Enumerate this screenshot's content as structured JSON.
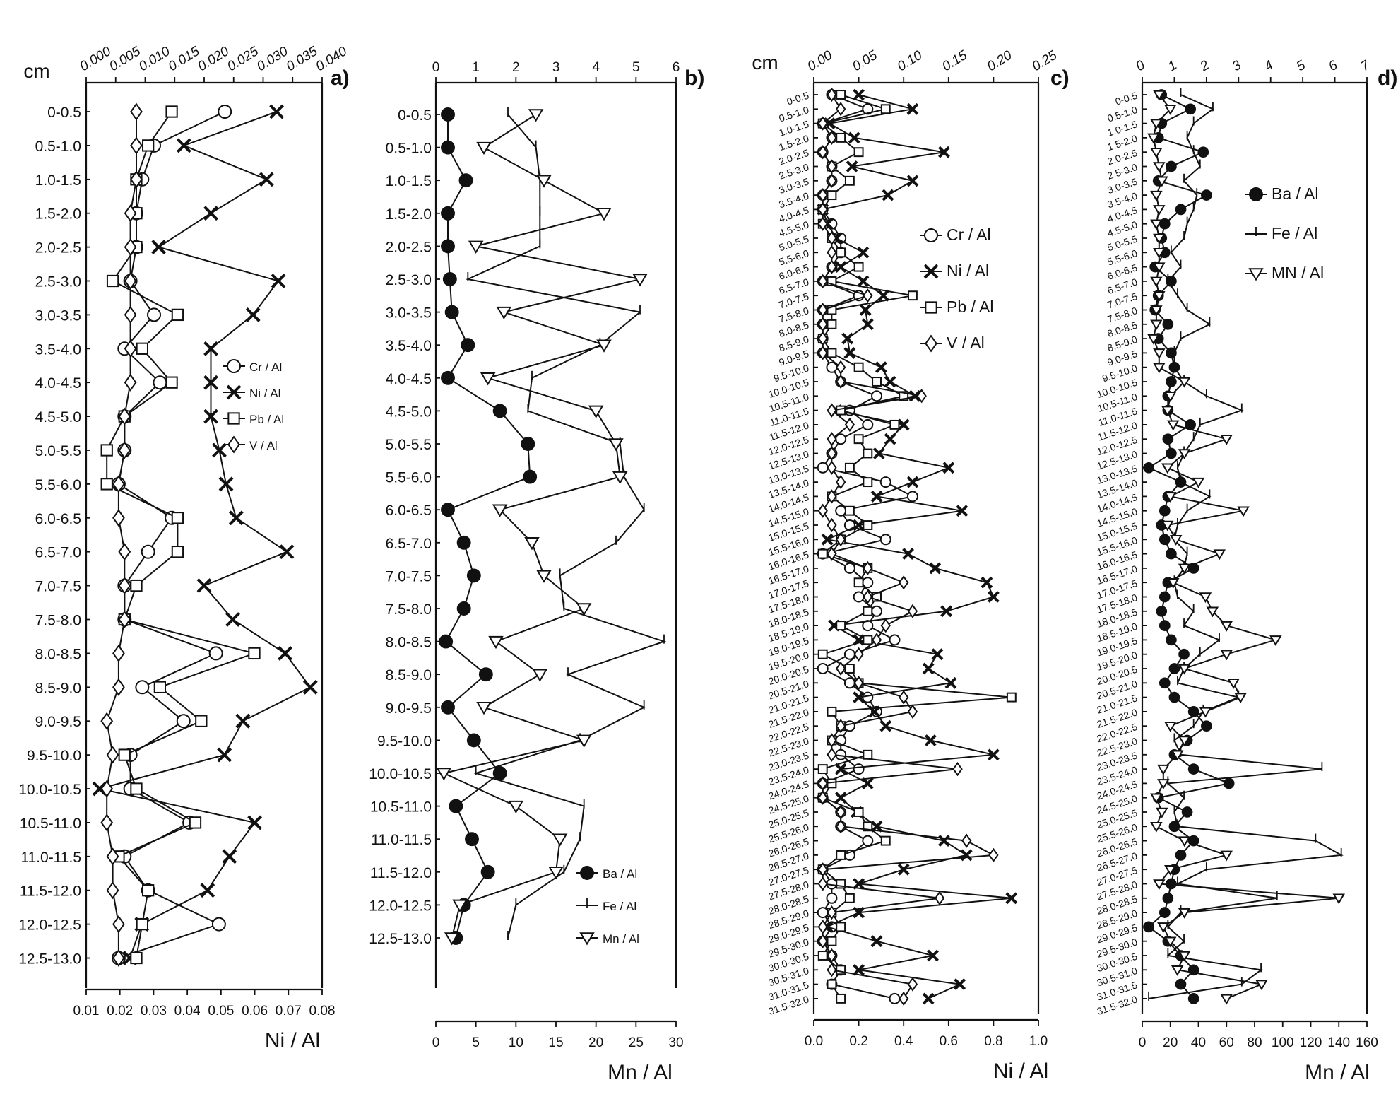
{
  "figure": {
    "depth_unit": "cm",
    "panels": [
      "a)",
      "b)",
      "c)",
      "d)"
    ]
  },
  "chart_data": [
    {
      "panel": "a)",
      "type": "line",
      "depth_label": "cm",
      "categories": [
        "0-0.5",
        "0.5-1.0",
        "1.0-1.5",
        "1.5-2.0",
        "2.0-2.5",
        "2.5-3.0",
        "3.0-3.5",
        "3.5-4.0",
        "4.0-4.5",
        "4.5-5.0",
        "5.0-5.5",
        "5.5-6.0",
        "6.0-6.5",
        "6.5-7.0",
        "7.0-7.5",
        "7.5-8.0",
        "8.0-8.5",
        "8.5-9.0",
        "9.0-9.5",
        "9.5-10.0",
        "10.0-10.5",
        "10.5-11.0",
        "11.0-11.5",
        "11.5-12.0",
        "12.0-12.5",
        "12.5-13.0"
      ],
      "top_axis": {
        "min": 0.0,
        "max": 0.04,
        "ticks": [
          "0.000",
          "0.005",
          "0.010",
          "0.015",
          "0.020",
          "0.025",
          "0.030",
          "0.035",
          "0.040"
        ]
      },
      "bottom_axis": {
        "label": "Ni / Al",
        "min": 0.01,
        "max": 0.08,
        "ticks": [
          "0.01",
          "0.02",
          "0.03",
          "0.04",
          "0.05",
          "0.06",
          "0.07",
          "0.08"
        ]
      },
      "series": [
        {
          "name": "Cr / Al",
          "marker": "circle",
          "axis": "top",
          "values": [
            0.0235,
            0.0115,
            0.0095,
            0.0085,
            0.0085,
            0.0075,
            0.0115,
            0.0065,
            0.0125,
            0.0065,
            0.0065,
            0.0055,
            0.0145,
            0.0105,
            0.0065,
            0.0065,
            0.022,
            0.0095,
            0.0165,
            0.0075,
            0.0075,
            0.0175,
            0.0065,
            0.0105,
            0.0225,
            0.0055
          ]
        },
        {
          "name": "Ni / Al",
          "marker": "x",
          "axis": "bottom",
          "values": [
            0.0665,
            0.039,
            0.0635,
            0.047,
            0.0315,
            0.067,
            0.0595,
            0.047,
            0.047,
            0.047,
            0.0495,
            0.0515,
            0.0545,
            0.0695,
            0.045,
            0.0535,
            0.069,
            0.0765,
            0.0565,
            0.051,
            0.014,
            0.06,
            0.0525,
            0.046,
            0.0265,
            0.023
          ]
        },
        {
          "name": "Pb / Al",
          "marker": "square",
          "axis": "top",
          "values": [
            0.0145,
            0.0105,
            0.0085,
            0.0085,
            0.0085,
            0.0045,
            0.0155,
            0.0095,
            0.0145,
            0.0065,
            0.0035,
            0.0035,
            0.0155,
            0.0155,
            0.0085,
            0.0065,
            0.0285,
            0.0125,
            0.0195,
            0.0065,
            0.0085,
            0.0185,
            0.0055,
            0.0105,
            0.0095,
            0.0085
          ]
        },
        {
          "name": "V / Al",
          "marker": "diamond",
          "axis": "top",
          "values": [
            0.0085,
            0.0085,
            0.0085,
            0.0075,
            0.0075,
            0.0075,
            0.0075,
            0.0075,
            0.0075,
            0.0065,
            0.0065,
            0.0055,
            0.0055,
            0.0065,
            0.0065,
            0.0065,
            0.0055,
            0.0055,
            0.0035,
            0.0045,
            0.0035,
            0.0035,
            0.0045,
            0.0045,
            0.0055,
            0.0055
          ]
        }
      ],
      "legend_position": "right"
    },
    {
      "panel": "b)",
      "type": "line",
      "categories": [
        "0-0.5",
        "0.5-1.0",
        "1.0-1.5",
        "1.5-2.0",
        "2.0-2.5",
        "2.5-3.0",
        "3.0-3.5",
        "3.5-4.0",
        "4.0-4.5",
        "4.5-5.0",
        "5.0-5.5",
        "5.5-6.0",
        "6.0-6.5",
        "6.5-7.0",
        "7.0-7.5",
        "7.5-8.0",
        "8.0-8.5",
        "8.5-9.0",
        "9.0-9.5",
        "9.5-10.0",
        "10.0-10.5",
        "10.5-11.0",
        "11.0-11.5",
        "11.5-12.0",
        "12.0-12.5",
        "12.5-13.0"
      ],
      "top_axis": {
        "min": 0,
        "max": 6,
        "ticks": [
          "0",
          "1",
          "2",
          "3",
          "4",
          "5",
          "6"
        ]
      },
      "bottom_axis": {
        "label": "Mn / Al",
        "min": 0,
        "max": 30,
        "ticks": [
          "0",
          "5",
          "10",
          "15",
          "20",
          "25",
          "30"
        ]
      },
      "series": [
        {
          "name": "Ba / Al",
          "marker": "filled-circle",
          "axis": "top",
          "values": [
            0.3,
            0.3,
            0.75,
            0.3,
            0.3,
            0.35,
            0.4,
            0.8,
            0.3,
            1.6,
            2.3,
            2.35,
            0.3,
            0.7,
            0.95,
            0.7,
            0.25,
            1.25,
            0.3,
            0.95,
            1.6,
            0.5,
            0.9,
            1.3,
            0.7,
            0.5
          ]
        },
        {
          "name": "Fe / Al",
          "marker": "tick",
          "axis": "top",
          "values": [
            1.8,
            2.5,
            2.6,
            2.6,
            2.6,
            0.8,
            5.1,
            4.1,
            2.4,
            2.3,
            4.6,
            4.7,
            5.2,
            4.5,
            3.1,
            3.2,
            5.7,
            3.3,
            5.2,
            3.6,
            1.0,
            3.7,
            3.6,
            3.2,
            2.0,
            1.8
          ]
        },
        {
          "name": "Mn / Al",
          "marker": "triangle-down",
          "axis": "bottom",
          "values": [
            12.5,
            6.0,
            13.5,
            21.0,
            5.0,
            25.5,
            8.5,
            21.0,
            6.5,
            20.0,
            22.5,
            23.0,
            8.0,
            12.0,
            13.5,
            18.5,
            7.5,
            13.0,
            6.0,
            18.5,
            1.0,
            10.0,
            15.5,
            15.0,
            3.0,
            2.0
          ]
        }
      ],
      "legend_position": "bottom-right"
    },
    {
      "panel": "c)",
      "type": "line",
      "depth_label": "cm",
      "categories": [
        "0-0.5",
        "0.5-1.0",
        "1.0-1.5",
        "1.5-2.0",
        "2.0-2.5",
        "2.5-3.0",
        "3.0-3.5",
        "3.5-4.0",
        "4.0-4.5",
        "4.5-5.0",
        "5.0-5.5",
        "5.5-6.0",
        "6.0-6.5",
        "6.5-7.0",
        "7.0-7.5",
        "7.5-8.0",
        "8.0-8.5",
        "8.5-9.0",
        "9.0-9.5",
        "9.5-10.0",
        "10.0-10.5",
        "10.5-11.0",
        "11.0-11.5",
        "11.5-12.0",
        "12.0-12.5",
        "12.5-13.0",
        "13.0-13.5",
        "13.5-14.0",
        "14.0-14.5",
        "14.5-15.0",
        "15.0-15.5",
        "15.5-16.0",
        "16.0-16.5",
        "16.5-17.0",
        "17.0-17.5",
        "17.5-18.0",
        "18.0-18.5",
        "18.5-19.0",
        "19.0-19.5",
        "19.5-20.0",
        "20.0-20.5",
        "20.5-21.0",
        "21.0-21.5",
        "21.5-22.0",
        "22.0-22.5",
        "22.5-23.0",
        "23.0-23.5",
        "23.5-24.0",
        "24.0-24.5",
        "24.5-25.0",
        "25.0-25.5",
        "25.5-26.0",
        "26.0-26.5",
        "26.5-27.0",
        "27.0-27.5",
        "27.5-28.0",
        "28.0-28.5",
        "28.5-29.0",
        "29.0-29.5",
        "29.5-30.0",
        "30.0-30.5",
        "30.5-31.0",
        "31.0-31.5",
        "31.5-32.0"
      ],
      "top_axis": {
        "min": 0.0,
        "max": 0.25,
        "ticks": [
          "0.00",
          "0.05",
          "0.10",
          "0.15",
          "0.20",
          "0.25"
        ]
      },
      "bottom_axis": {
        "label": "Ni / Al",
        "min": 0.0,
        "max": 1.0,
        "ticks": [
          "0.0",
          "0.2",
          "0.4",
          "0.6",
          "0.8",
          "1.0"
        ]
      },
      "series": [
        {
          "name": "Cr / Al",
          "marker": "circle",
          "axis": "top",
          "values": [
            0.02,
            0.06,
            0.01,
            0.02,
            0.01,
            0.02,
            0.02,
            0.01,
            0.01,
            0.02,
            0.03,
            0.03,
            0.02,
            0.01,
            0.05,
            0.01,
            0.01,
            0.01,
            0.01,
            0.02,
            0.03,
            0.07,
            0.04,
            0.06,
            0.03,
            0.02,
            0.01,
            0.08,
            0.11,
            0.03,
            0.04,
            0.08,
            0.01,
            0.04,
            0.06,
            0.05,
            0.07,
            0.06,
            0.09,
            0.04,
            0.01,
            0.04,
            0.06,
            0.07,
            0.04,
            0.03,
            0.03,
            0.05,
            0.01,
            0.01,
            0.03,
            0.03,
            0.06,
            0.04,
            0.01,
            0.02,
            0.02,
            0.01,
            0.02,
            0.01,
            0.02,
            0.03,
            0.02,
            0.09
          ]
        },
        {
          "name": "Ni / Al",
          "marker": "x",
          "axis": "bottom",
          "values": [
            0.2,
            0.44,
            0.07,
            0.18,
            0.58,
            0.17,
            0.44,
            0.33,
            0.04,
            0.06,
            0.1,
            0.22,
            0.12,
            0.22,
            0.31,
            0.23,
            0.24,
            0.15,
            0.16,
            0.3,
            0.34,
            0.45,
            0.1,
            0.4,
            0.34,
            0.29,
            0.6,
            0.44,
            0.28,
            0.66,
            0.2,
            0.06,
            0.42,
            0.54,
            0.77,
            0.8,
            0.59,
            0.09,
            0.2,
            0.55,
            0.51,
            0.61,
            0.2,
            0.27,
            0.32,
            0.52,
            0.8,
            0.12,
            0.24,
            0.12,
            0.19,
            0.28,
            0.58,
            0.68,
            0.4,
            0.2,
            0.88,
            0.2,
            0.06,
            0.28,
            0.53,
            0.2,
            0.65,
            0.51
          ]
        },
        {
          "name": "Pb / Al",
          "marker": "square",
          "axis": "top",
          "values": [
            0.03,
            0.08,
            0.01,
            0.03,
            0.05,
            0.02,
            0.04,
            0.02,
            0.01,
            0.01,
            0.02,
            0.03,
            0.05,
            0.02,
            0.11,
            0.02,
            0.02,
            0.01,
            0.02,
            0.05,
            0.07,
            0.1,
            0.03,
            0.09,
            0.05,
            0.06,
            0.04,
            0.06,
            0.02,
            0.04,
            0.06,
            0.03,
            0.01,
            0.06,
            0.05,
            0.07,
            0.06,
            0.03,
            0.06,
            0.01,
            0.04,
            0.05,
            0.22,
            0.02,
            0.03,
            0.02,
            0.06,
            0.01,
            0.02,
            0.01,
            0.05,
            0.06,
            0.08,
            0.03,
            0.01,
            0.03,
            0.04,
            0.02,
            0.03,
            0.02,
            0.01,
            0.03,
            0.02,
            0.03
          ]
        },
        {
          "name": "V / Al",
          "marker": "diamond",
          "axis": "top",
          "values": [
            0.02,
            0.03,
            0.01,
            0.02,
            0.01,
            0.02,
            0.02,
            0.01,
            0.01,
            0.01,
            0.02,
            0.02,
            0.02,
            0.01,
            0.06,
            0.01,
            0.01,
            0.01,
            0.01,
            0.03,
            0.03,
            0.12,
            0.02,
            0.04,
            0.02,
            0.02,
            0.02,
            0.03,
            0.02,
            0.01,
            0.02,
            0.03,
            0.02,
            0.06,
            0.1,
            0.06,
            0.11,
            0.08,
            0.07,
            0.05,
            0.03,
            0.05,
            0.1,
            0.11,
            0.03,
            0.02,
            0.02,
            0.16,
            0.01,
            0.01,
            0.03,
            0.03,
            0.17,
            0.2,
            0.01,
            0.01,
            0.14,
            0.02,
            0.01,
            0.01,
            0.02,
            0.02,
            0.11,
            0.1
          ]
        }
      ],
      "legend_position": "top-right"
    },
    {
      "panel": "d)",
      "type": "line",
      "categories": [
        "0-0.5",
        "0.5-1.0",
        "1.0-1.5",
        "1.5-2.0",
        "2.0-2.5",
        "2.5-3.0",
        "3.0-3.5",
        "3.5-4.0",
        "4.0-4.5",
        "4.5-5.0",
        "5.0-5.5",
        "5.5-6.0",
        "6.0-6.5",
        "6.5-7.0",
        "7.0-7.5",
        "7.5-8.0",
        "8.0-8.5",
        "8.5-9.0",
        "9.0-9.5",
        "9.5-10.0",
        "10.0-10.5",
        "10.5-11.0",
        "11.0-11.5",
        "11.5-12.0",
        "12.0-12.5",
        "12.5-13.0",
        "13.0-13.5",
        "13.5-14.0",
        "14.0-14.5",
        "14.5-15.0",
        "15.0-15.5",
        "15.5-16.0",
        "16.0-16.5",
        "16.5-17.0",
        "17.0-17.5",
        "17.5-18.0",
        "18.0-18.5",
        "18.5-19.0",
        "19.0-19.5",
        "19.5-20.0",
        "20.0-20.5",
        "20.5-21.0",
        "21.0-21.5",
        "21.5-22.0",
        "22.0-22.5",
        "22.5-23.0",
        "23.0-23.5",
        "23.5-24.0",
        "24.0-24.5",
        "24.5-25.0",
        "25.0-25.5",
        "25.5-26.0",
        "26.0-26.5",
        "26.5-27.0",
        "27.0-27.5",
        "27.5-28.0",
        "28.0-28.5",
        "28.5-29.0",
        "29.0-29.5",
        "29.5-30.0",
        "30.0-30.5",
        "30.5-31.0",
        "31.0-31.5",
        "31.5-32.0"
      ],
      "top_axis": {
        "min": 0,
        "max": 7,
        "ticks": [
          "0",
          "1",
          "2",
          "3",
          "4",
          "5",
          "6",
          "7"
        ]
      },
      "bottom_axis": {
        "label": "Mn / Al",
        "min": 0,
        "max": 160,
        "ticks": [
          "0",
          "20",
          "40",
          "60",
          "80",
          "100",
          "120",
          "140",
          "160"
        ]
      },
      "series": [
        {
          "name": "Ba / Al",
          "marker": "filled-circle",
          "axis": "top",
          "values": [
            0.6,
            1.5,
            0.6,
            0.5,
            1.9,
            0.9,
            0.5,
            2.0,
            1.2,
            0.7,
            0.6,
            0.7,
            0.4,
            0.9,
            0.5,
            0.4,
            0.8,
            0.5,
            0.9,
            1.0,
            0.9,
            0.8,
            0.8,
            1.5,
            0.8,
            0.9,
            0.2,
            1.2,
            0.8,
            0.7,
            0.6,
            0.7,
            0.9,
            1.6,
            0.8,
            0.7,
            0.6,
            0.7,
            0.9,
            1.3,
            1.0,
            0.7,
            1.0,
            1.6,
            2.0,
            1.4,
            1.0,
            1.6,
            2.7,
            0.5,
            1.4,
            1.0,
            1.6,
            1.2,
            1.0,
            0.9,
            0.8,
            0.7,
            0.2,
            0.8,
            1.2,
            1.6,
            1.2,
            1.6
          ]
        },
        {
          "name": "Fe / Al",
          "marker": "tick",
          "axis": "top",
          "values": [
            1.2,
            2.2,
            1.6,
            1.4,
            1.6,
            1.8,
            1.3,
            1.7,
            1.6,
            1.4,
            1.3,
            0.9,
            1.2,
            0.8,
            1.1,
            1.4,
            2.1,
            1.2,
            1.0,
            1.0,
            1.3,
            2.0,
            3.1,
            1.8,
            1.6,
            1.3,
            1.1,
            1.2,
            2.1,
            1.4,
            1.1,
            1.0,
            1.4,
            1.3,
            1.0,
            1.1,
            1.6,
            1.3,
            2.4,
            1.8,
            1.3,
            1.1,
            3.0,
            1.9,
            1.6,
            1.0,
            1.2,
            5.6,
            0.8,
            1.3,
            1.0,
            1.1,
            5.4,
            6.2,
            2.0,
            1.1,
            4.2,
            1.2,
            0.8,
            1.3,
            0.8,
            3.7,
            3.1,
            0.2
          ]
        },
        {
          "name": "MN / Al",
          "marker": "triangle-down",
          "axis": "bottom",
          "values": [
            12,
            20,
            10,
            8,
            10,
            12,
            14,
            10,
            12,
            10,
            12,
            12,
            12,
            10,
            12,
            10,
            10,
            8,
            12,
            12,
            30,
            20,
            18,
            22,
            60,
            30,
            18,
            40,
            20,
            72,
            18,
            24,
            55,
            30,
            22,
            45,
            50,
            60,
            95,
            60,
            30,
            65,
            70,
            45,
            20,
            30,
            25,
            15,
            15,
            10,
            14,
            10,
            30,
            60,
            20,
            12,
            140,
            30,
            15,
            20,
            30,
            25,
            85,
            60
          ]
        }
      ],
      "legend_position": "top-right"
    }
  ]
}
